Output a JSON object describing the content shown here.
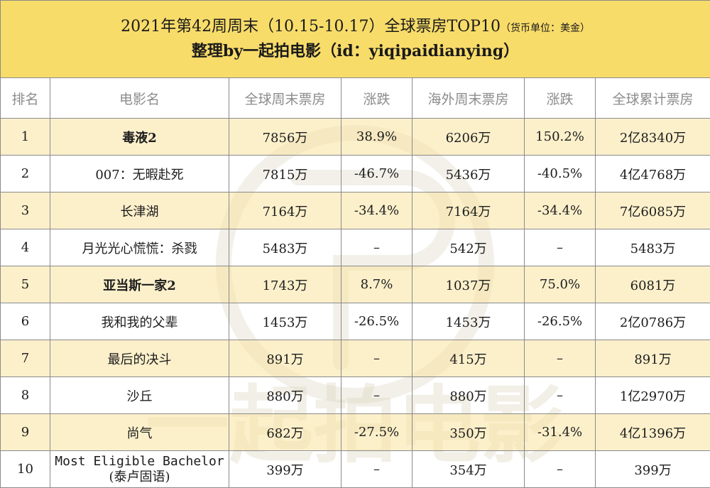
{
  "title": {
    "main": "2021年第42周周末（10.15-10.17）全球票房TOP10",
    "note": "（货币单位：美金）",
    "sub": "整理by一起拍电影（id：yiqipaidianying）"
  },
  "watermark": {
    "text": "一起拍电影"
  },
  "columns": [
    "排名",
    "电影名",
    "全球周末票房",
    "涨跌",
    "海外周末票房",
    "涨跌",
    "全球累计票房"
  ],
  "rows": [
    {
      "rank": "1",
      "name": "毒液2",
      "global_weekend": "7856万",
      "global_change": "38.9%",
      "overseas_weekend": "6206万",
      "overseas_change": "150.2%",
      "total": "2亿8340万"
    },
    {
      "rank": "2",
      "name": "007：无暇赴死",
      "global_weekend": "7815万",
      "global_change": "-46.7%",
      "overseas_weekend": "5436万",
      "overseas_change": "-40.5%",
      "total": "4亿4768万"
    },
    {
      "rank": "3",
      "name": "长津湖",
      "global_weekend": "7164万",
      "global_change": "-34.4%",
      "overseas_weekend": "7164万",
      "overseas_change": "-34.4%",
      "total": "7亿6085万"
    },
    {
      "rank": "4",
      "name": "月光光心慌慌：杀戮",
      "global_weekend": "5483万",
      "global_change": "–",
      "overseas_weekend": "542万",
      "overseas_change": "–",
      "total": "5483万"
    },
    {
      "rank": "5",
      "name": "亚当斯一家2",
      "global_weekend": "1743万",
      "global_change": "8.7%",
      "overseas_weekend": "1037万",
      "overseas_change": "75.0%",
      "total": "6081万"
    },
    {
      "rank": "6",
      "name": "我和我的父辈",
      "global_weekend": "1453万",
      "global_change": "-26.5%",
      "overseas_weekend": "1453万",
      "overseas_change": "-26.5%",
      "total": "2亿0786万"
    },
    {
      "rank": "7",
      "name": "最后的决斗",
      "global_weekend": "891万",
      "global_change": "–",
      "overseas_weekend": "415万",
      "overseas_change": "–",
      "total": "891万"
    },
    {
      "rank": "8",
      "name": "沙丘",
      "global_weekend": "880万",
      "global_change": "–",
      "overseas_weekend": "880万",
      "overseas_change": "–",
      "total": "1亿2970万"
    },
    {
      "rank": "9",
      "name": "尚气",
      "global_weekend": "682万",
      "global_change": "-27.5%",
      "overseas_weekend": "350万",
      "overseas_change": "-31.4%",
      "total": "4亿1396万"
    },
    {
      "rank": "10",
      "name": "Most Eligible Bachelor",
      "name_cn": "(泰卢固语)",
      "global_weekend": "399万",
      "global_change": "–",
      "overseas_weekend": "354万",
      "overseas_change": "–",
      "total": "399万"
    }
  ],
  "colors": {
    "header_bg": "#f8dc6a",
    "stripe": "#fae4a0",
    "up": "#1aa3d4",
    "down": "#e02424"
  }
}
